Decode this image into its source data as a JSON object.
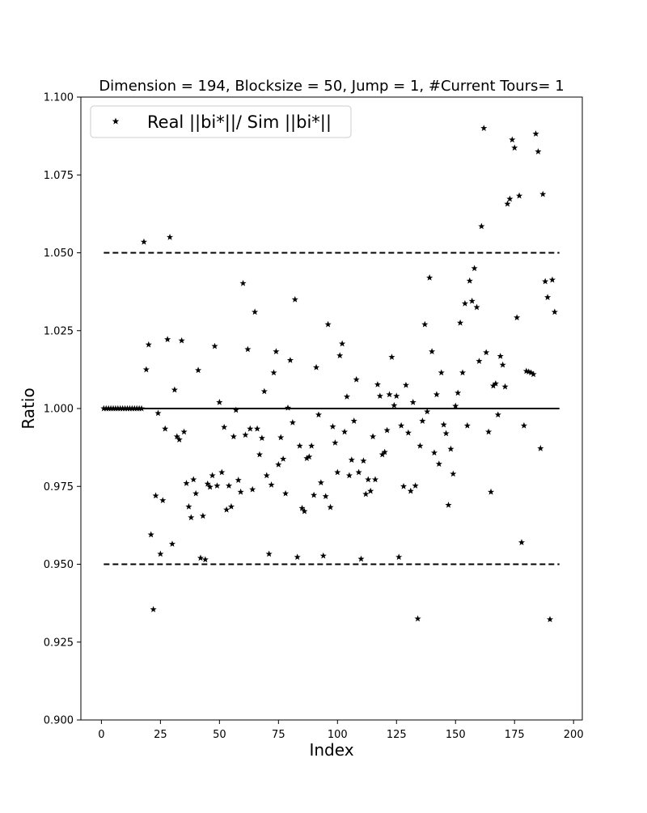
{
  "chart_data": {
    "type": "scatter",
    "title": "Dimension = 194, Blocksize = 50, Jump = 1, #Current Tours= 1",
    "xlabel": "Index",
    "ylabel": "Ratio",
    "xlim": [
      -8.7,
      203.7
    ],
    "ylim": [
      0.9,
      1.1
    ],
    "x_ticks": [
      0,
      25,
      50,
      75,
      100,
      125,
      150,
      175,
      200
    ],
    "y_ticks": [
      0.9,
      0.925,
      0.95,
      0.975,
      1.0,
      1.025,
      1.05,
      1.075,
      1.1
    ],
    "x_tick_labels": [
      "0",
      "25",
      "50",
      "75",
      "100",
      "125",
      "150",
      "175",
      "200"
    ],
    "y_tick_labels": [
      "0.900",
      "0.925",
      "0.950",
      "0.975",
      "1.000",
      "1.025",
      "1.050",
      "1.075",
      "1.100"
    ],
    "grid": false,
    "legend_position": "top-left",
    "series": [
      {
        "name": "Real ||bi*||/ Sim ||bi*||",
        "marker": "star",
        "color": "#000000",
        "points": [
          [
            1,
            1.0
          ],
          [
            2,
            1.0
          ],
          [
            3,
            1.0
          ],
          [
            4,
            1.0
          ],
          [
            5,
            1.0
          ],
          [
            6,
            1.0
          ],
          [
            7,
            1.0
          ],
          [
            8,
            1.0
          ],
          [
            9,
            1.0
          ],
          [
            10,
            1.0
          ],
          [
            11,
            1.0
          ],
          [
            12,
            1.0
          ],
          [
            13,
            1.0
          ],
          [
            14,
            1.0
          ],
          [
            15,
            1.0
          ],
          [
            16,
            1.0
          ],
          [
            17,
            1.0
          ],
          [
            18,
            1.0535
          ],
          [
            19,
            1.0125
          ],
          [
            20,
            1.0205
          ],
          [
            21,
            0.9595
          ],
          [
            22,
            0.9355
          ],
          [
            23,
            0.972
          ],
          [
            24,
            0.9985
          ],
          [
            25,
            0.9533
          ],
          [
            26,
            0.9705
          ],
          [
            27,
            0.9935
          ],
          [
            28,
            1.0222
          ],
          [
            29,
            1.055
          ],
          [
            30,
            0.9565
          ],
          [
            31,
            1.006
          ],
          [
            32,
            0.991
          ],
          [
            33,
            0.99
          ],
          [
            34,
            1.0218
          ],
          [
            35,
            0.9925
          ],
          [
            36,
            0.976
          ],
          [
            37,
            0.9685
          ],
          [
            38,
            0.965
          ],
          [
            39,
            0.9772
          ],
          [
            40,
            0.9727
          ],
          [
            41,
            1.0123
          ],
          [
            42,
            0.952
          ],
          [
            43,
            0.9655
          ],
          [
            44,
            0.9515
          ],
          [
            45,
            0.9758
          ],
          [
            46,
            0.9748
          ],
          [
            47,
            0.9785
          ],
          [
            48,
            1.02
          ],
          [
            49,
            0.9752
          ],
          [
            50,
            1.002
          ],
          [
            51,
            0.9795
          ],
          [
            52,
            0.994
          ],
          [
            53,
            0.9675
          ],
          [
            54,
            0.9752
          ],
          [
            55,
            0.9685
          ],
          [
            56,
            0.991
          ],
          [
            57,
            0.9995
          ],
          [
            58,
            0.977
          ],
          [
            59,
            0.9732
          ],
          [
            60,
            1.0402
          ],
          [
            61,
            0.9915
          ],
          [
            62,
            1.019
          ],
          [
            63,
            0.9935
          ],
          [
            64,
            0.974
          ],
          [
            65,
            1.031
          ],
          [
            66,
            0.9935
          ],
          [
            67,
            0.9852
          ],
          [
            68,
            0.9905
          ],
          [
            69,
            1.0055
          ],
          [
            70,
            0.9785
          ],
          [
            71,
            0.9533
          ],
          [
            72,
            0.9755
          ],
          [
            73,
            1.0115
          ],
          [
            74,
            1.0183
          ],
          [
            75,
            0.982
          ],
          [
            76,
            0.9907
          ],
          [
            77,
            0.9838
          ],
          [
            78,
            0.9727
          ],
          [
            79,
            1.0002
          ],
          [
            80,
            1.0155
          ],
          [
            81,
            0.9955
          ],
          [
            82,
            1.035
          ],
          [
            83,
            0.9523
          ],
          [
            84,
            0.988
          ],
          [
            85,
            0.968
          ],
          [
            86,
            0.967
          ],
          [
            87,
            0.984
          ],
          [
            88,
            0.9845
          ],
          [
            89,
            0.988
          ],
          [
            90,
            0.9722
          ],
          [
            91,
            1.0132
          ],
          [
            92,
            0.998
          ],
          [
            93,
            0.9762
          ],
          [
            94,
            0.9527
          ],
          [
            95,
            0.9718
          ],
          [
            96,
            1.027
          ],
          [
            97,
            0.9683
          ],
          [
            98,
            0.9942
          ],
          [
            99,
            0.989
          ],
          [
            100,
            0.9795
          ],
          [
            101,
            1.017
          ],
          [
            102,
            1.0208
          ],
          [
            103,
            0.9925
          ],
          [
            104,
            1.0038
          ],
          [
            105,
            0.9785
          ],
          [
            106,
            0.9835
          ],
          [
            107,
            0.996
          ],
          [
            108,
            1.0093
          ],
          [
            109,
            0.9795
          ],
          [
            110,
            0.9517
          ],
          [
            111,
            0.9832
          ],
          [
            112,
            0.9725
          ],
          [
            113,
            0.9772
          ],
          [
            114,
            0.9735
          ],
          [
            115,
            0.991
          ],
          [
            116,
            0.9772
          ],
          [
            117,
            1.0077
          ],
          [
            118,
            1.004
          ],
          [
            119,
            0.9852
          ],
          [
            120,
            0.986
          ],
          [
            121,
            0.993
          ],
          [
            122,
            1.0045
          ],
          [
            123,
            1.0165
          ],
          [
            124,
            1.001
          ],
          [
            125,
            1.004
          ],
          [
            126,
            0.9523
          ],
          [
            127,
            0.9945
          ],
          [
            128,
            0.975
          ],
          [
            129,
            1.0075
          ],
          [
            130,
            0.9922
          ],
          [
            131,
            0.9735
          ],
          [
            132,
            1.002
          ],
          [
            133,
            0.9752
          ],
          [
            134,
            0.9325
          ],
          [
            135,
            0.988
          ],
          [
            136,
            0.996
          ],
          [
            137,
            1.027
          ],
          [
            138,
            0.999
          ],
          [
            139,
            1.042
          ],
          [
            140,
            1.0183
          ],
          [
            141,
            0.9858
          ],
          [
            142,
            1.0045
          ],
          [
            143,
            0.9822
          ],
          [
            144,
            1.0115
          ],
          [
            145,
            0.9948
          ],
          [
            146,
            0.992
          ],
          [
            147,
            0.969
          ],
          [
            148,
            0.987
          ],
          [
            149,
            0.979
          ],
          [
            150,
            1.0008
          ],
          [
            151,
            1.005
          ],
          [
            152,
            1.0275
          ],
          [
            153,
            1.0115
          ],
          [
            154,
            1.0337
          ],
          [
            155,
            0.9945
          ],
          [
            156,
            1.041
          ],
          [
            157,
            1.0345
          ],
          [
            158,
            1.045
          ],
          [
            159,
            1.0325
          ],
          [
            160,
            1.0152
          ],
          [
            161,
            1.0585
          ],
          [
            162,
            1.09
          ],
          [
            163,
            1.018
          ],
          [
            164,
            0.9925
          ],
          [
            165,
            0.9732
          ],
          [
            166,
            1.0073
          ],
          [
            167,
            1.008
          ],
          [
            168,
            0.998
          ],
          [
            169,
            1.0168
          ],
          [
            170,
            1.014
          ],
          [
            171,
            1.007
          ],
          [
            172,
            1.0657
          ],
          [
            173,
            1.0673
          ],
          [
            174,
            1.0863
          ],
          [
            175,
            1.0837
          ],
          [
            176,
            1.0292
          ],
          [
            177,
            1.0683
          ],
          [
            178,
            0.957
          ],
          [
            179,
            0.9945
          ],
          [
            180,
            1.012
          ],
          [
            181,
            1.0118
          ],
          [
            182,
            1.0115
          ],
          [
            183,
            1.011
          ],
          [
            184,
            1.0882
          ],
          [
            185,
            1.0825
          ],
          [
            186,
            0.9872
          ],
          [
            187,
            1.0688
          ],
          [
            188,
            1.0408
          ],
          [
            189,
            1.0357
          ],
          [
            190,
            0.9323
          ],
          [
            191,
            1.0413
          ],
          [
            192,
            1.031
          ]
        ]
      }
    ],
    "reference_lines": [
      {
        "y": 1.0,
        "x_range": [
          1,
          194
        ],
        "style": "solid"
      },
      {
        "y": 1.05,
        "x_range": [
          1,
          194
        ],
        "style": "dashed"
      },
      {
        "y": 0.95,
        "x_range": [
          1,
          194
        ],
        "style": "dashed"
      }
    ]
  }
}
